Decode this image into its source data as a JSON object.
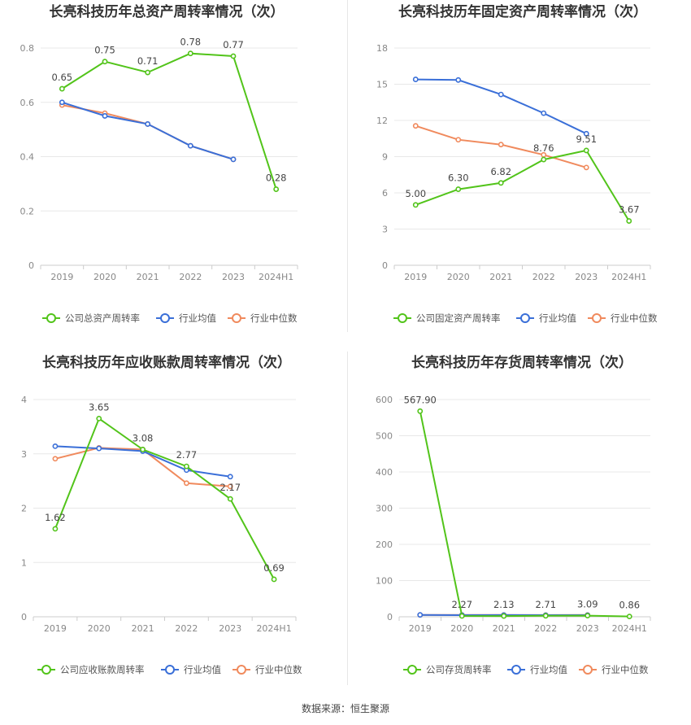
{
  "footer": {
    "source": "数据来源：恒生聚源"
  },
  "colors": {
    "company": "#52c41a",
    "avg": "#3a6fd8",
    "median": "#f08a5d",
    "grid": "#e8e8e8",
    "axis": "#999999"
  },
  "chart_data": [
    {
      "type": "line",
      "title": "长亮科技历年总资产周转率情况（次）",
      "categories": [
        "2019",
        "2020",
        "2021",
        "2022",
        "2023",
        "2024H1"
      ],
      "yticks": [
        "0",
        "0.2",
        "0.4",
        "0.6",
        "0.8"
      ],
      "ylim": [
        0,
        0.8
      ],
      "grid": true,
      "legend_position": "bottom",
      "series": [
        {
          "name": "公司总资产周转率",
          "values": [
            0.65,
            0.75,
            0.71,
            0.78,
            0.77,
            0.28
          ],
          "labels": [
            "0.65",
            "0.75",
            "0.71",
            "0.78",
            "0.77",
            "0.28"
          ]
        },
        {
          "name": "行业均值",
          "values": [
            0.6,
            0.55,
            0.52,
            0.44,
            0.39,
            null
          ]
        },
        {
          "name": "行业中位数",
          "values": [
            0.59,
            0.56,
            0.52,
            0.44,
            0.39,
            null
          ]
        }
      ]
    },
    {
      "type": "line",
      "title": "长亮科技历年固定资产周转率情况（次）",
      "categories": [
        "2019",
        "2020",
        "2021",
        "2022",
        "2023",
        "2024H1"
      ],
      "yticks": [
        "0",
        "3",
        "6",
        "9",
        "12",
        "15",
        "18"
      ],
      "ylim": [
        0,
        18
      ],
      "grid": true,
      "legend_position": "bottom",
      "series": [
        {
          "name": "公司固定资产周转率",
          "values": [
            5.0,
            6.3,
            6.82,
            8.76,
            9.51,
            3.67
          ],
          "labels": [
            "5.00",
            "6.30",
            "6.82",
            "8.76",
            "9.51",
            "3.67"
          ]
        },
        {
          "name": "行业均值",
          "values": [
            15.4,
            15.35,
            14.15,
            12.6,
            10.9,
            null
          ]
        },
        {
          "name": "行业中位数",
          "values": [
            11.55,
            10.4,
            10.0,
            9.15,
            8.1,
            null
          ]
        }
      ]
    },
    {
      "type": "line",
      "title": "长亮科技历年应收账款周转率情况（次）",
      "categories": [
        "2019",
        "2020",
        "2021",
        "2022",
        "2023",
        "2024H1"
      ],
      "yticks": [
        "0",
        "1",
        "2",
        "3",
        "4"
      ],
      "ylim": [
        0,
        4
      ],
      "grid": true,
      "legend_position": "bottom",
      "series": [
        {
          "name": "公司应收账款周转率",
          "values": [
            1.62,
            3.65,
            3.08,
            2.77,
            2.17,
            0.69
          ],
          "labels": [
            "1.62",
            "3.65",
            "3.08",
            "2.77",
            "2.17",
            "0.69"
          ]
        },
        {
          "name": "行业均值",
          "values": [
            3.14,
            3.1,
            3.05,
            2.7,
            2.58,
            null
          ]
        },
        {
          "name": "行业中位数",
          "values": [
            2.91,
            3.11,
            3.08,
            2.46,
            2.4,
            null
          ]
        }
      ]
    },
    {
      "type": "line",
      "title": "长亮科技历年存货周转率情况（次）",
      "categories": [
        "2019",
        "2020",
        "2021",
        "2022",
        "2023",
        "2024H1"
      ],
      "yticks": [
        "0",
        "100",
        "200",
        "300",
        "400",
        "500",
        "600"
      ],
      "ylim": [
        0,
        600
      ],
      "grid": true,
      "legend_position": "bottom",
      "series": [
        {
          "name": "公司存货周转率",
          "values": [
            567.9,
            2.27,
            2.13,
            2.71,
            3.09,
            0.86
          ],
          "labels": [
            "567.90",
            "2.27",
            "2.13",
            "2.71",
            "3.09",
            "0.86"
          ]
        },
        {
          "name": "行业均值",
          "values": [
            5.2,
            4.6,
            4.8,
            4.5,
            4.4,
            null
          ]
        },
        {
          "name": "行业中位数",
          "values": [
            5.0,
            4.9,
            5.0,
            4.7,
            4.9,
            null
          ]
        }
      ]
    }
  ]
}
